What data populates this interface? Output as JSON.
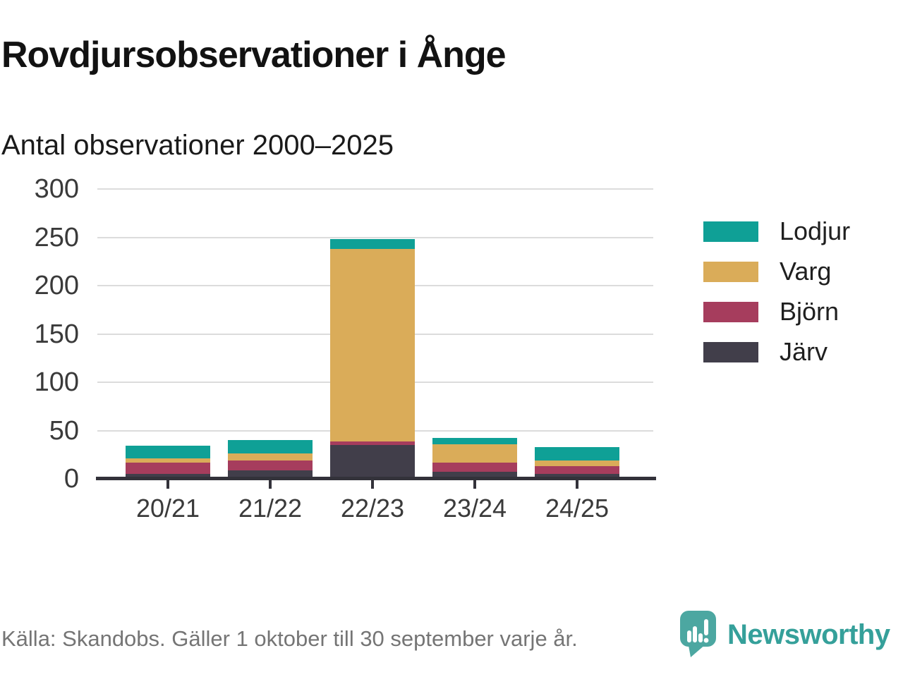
{
  "title": "Rovdjursobservationer i Ånge",
  "subtitle": "Antal observationer 2000–2025",
  "source_note": "Källa: Skandobs. Gäller 1 oktober till 30 september varje år.",
  "branding": {
    "wordmark": "Newsworthy",
    "logo_icon": "newsworthy-pin-icon",
    "pin_color": "#4ca7a1",
    "wordmark_color": "#35a09a"
  },
  "style": {
    "gridline_color": "#dcdcdc",
    "axis_color": "#33323a",
    "axis_text_color": "#3a3a3a"
  },
  "chart_data": {
    "type": "bar",
    "stacked": true,
    "title": "Rovdjursobservationer i Ånge",
    "subtitle": "Antal observationer 2000–2025",
    "categories": [
      "20/21",
      "21/22",
      "22/23",
      "23/24",
      "24/25"
    ],
    "series": [
      {
        "name": "Järv",
        "color": "#413e4a",
        "values": [
          5,
          9,
          35,
          7,
          5
        ]
      },
      {
        "name": "Björn",
        "color": "#a63d5d",
        "values": [
          12,
          10,
          4,
          10,
          8
        ]
      },
      {
        "name": "Varg",
        "color": "#daac59",
        "values": [
          4,
          7,
          199,
          19,
          6
        ]
      },
      {
        "name": "Lodjur",
        "color": "#0fa096",
        "values": [
          13,
          14,
          10,
          6,
          14
        ]
      }
    ],
    "legend": [
      {
        "label": "Lodjur",
        "color": "#0fa096"
      },
      {
        "label": "Varg",
        "color": "#daac59"
      },
      {
        "label": "Björn",
        "color": "#a63d5d"
      },
      {
        "label": "Järv",
        "color": "#413e4a"
      }
    ],
    "legend_position": "right",
    "xlabel": "",
    "ylabel": "",
    "ylim": [
      0,
      300
    ],
    "yticks": [
      0,
      50,
      100,
      150,
      200,
      250,
      300
    ],
    "grid": "horizontal"
  }
}
